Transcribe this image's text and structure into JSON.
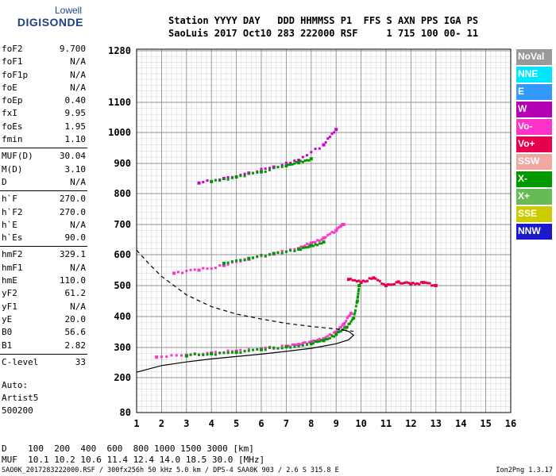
{
  "logo": {
    "line1": "Lowell",
    "line2": "DIGISONDE"
  },
  "header": {
    "line1": "Station YYYY DAY   DDD HHMMSS P1  FFS S AXN PPS IGA PS",
    "line2": "SaoLuis 2017 Oct10 283 222000 RSF     1 715 100 00- 11"
  },
  "params": [
    [
      [
        "foF2",
        "9.700"
      ],
      [
        "foF1",
        "N/A"
      ],
      [
        "foF1p",
        "N/A"
      ],
      [
        "foE",
        "N/A"
      ],
      [
        "foEp",
        "0.40"
      ],
      [
        "fxI",
        "9.95"
      ],
      [
        "foEs",
        "1.95"
      ],
      [
        "fmin",
        "1.10"
      ]
    ],
    [
      [
        "MUF(D)",
        "30.04"
      ],
      [
        "M(D)",
        "3.10"
      ],
      [
        "D",
        "N/A"
      ]
    ],
    [
      [
        "h`F",
        "270.0"
      ],
      [
        "h`F2",
        "270.0"
      ],
      [
        "h`E",
        "N/A"
      ],
      [
        "h`Es",
        "90.0"
      ]
    ],
    [
      [
        "hmF2",
        "329.1"
      ],
      [
        "hmF1",
        "N/A"
      ],
      [
        "hmE",
        "110.0"
      ],
      [
        "yF2",
        "61.2"
      ],
      [
        "yF1",
        "N/A"
      ],
      [
        "yE",
        "20.0"
      ],
      [
        "B0",
        "56.6"
      ],
      [
        "B1",
        "2.82"
      ]
    ],
    [
      [
        "C-level",
        "33"
      ]
    ]
  ],
  "auto": {
    "line1": "Auto:",
    "line2": "Artist5",
    "line3": "500200"
  },
  "legend": [
    {
      "label": "NoVal",
      "color": "#999999"
    },
    {
      "label": "NNE",
      "color": "#00e6ff"
    },
    {
      "label": "E",
      "color": "#3399ff"
    },
    {
      "label": "W",
      "color": "#b300b3"
    },
    {
      "label": "Vo-",
      "color": "#ff33cc"
    },
    {
      "label": "Vo+",
      "color": "#e6004d"
    },
    {
      "label": "SSW",
      "color": "#f0a8a0"
    },
    {
      "label": "X-",
      "color": "#009900"
    },
    {
      "label": "X+",
      "color": "#66bb55"
    },
    {
      "label": "SSE",
      "color": "#cccc00"
    },
    {
      "label": "NNW",
      "color": "#1a1acc"
    }
  ],
  "conversion": {
    "line1": "D    100  200  400  600  800 1000 1500 3000 [km]",
    "line2": "MUF  10.1 10.2 10.6 11.4 12.4 14.0 18.5 30.0 [MHz]"
  },
  "footer": "SAO0K_2017283222000.RSF / 300fx256h 50 kHz 5.0 km / DPS-4 SAA0K 903 / 2.6 S 315.8 E",
  "version": "Ion2Png 1.3.17",
  "chart_data": {
    "type": "scatter",
    "xlim": [
      1,
      16
    ],
    "ylim": [
      80,
      1280
    ],
    "xticks": [
      1,
      2,
      3,
      4,
      5,
      6,
      7,
      8,
      9,
      10,
      11,
      12,
      13,
      14,
      15,
      16
    ],
    "yticks": [
      80,
      200,
      300,
      400,
      500,
      600,
      700,
      800,
      900,
      1000,
      1100,
      1280
    ],
    "grid": true,
    "traces": [
      {
        "name": "trace_o1",
        "color": "#ff33cc",
        "f": [
          1.8,
          3,
          4,
          5,
          6,
          7,
          7.5,
          8,
          8.5,
          9,
          9.3,
          9.6
        ],
        "h": [
          268,
          274,
          282,
          288,
          295,
          304,
          310,
          318,
          328,
          350,
          375,
          410
        ]
      },
      {
        "name": "trace_x1",
        "color": "#009900",
        "f": [
          3,
          4,
          5,
          6,
          7,
          8,
          8.5,
          9,
          9.4,
          9.7,
          9.85,
          9.92
        ],
        "h": [
          272,
          279,
          284,
          293,
          302,
          312,
          322,
          342,
          365,
          395,
          450,
          500
        ]
      },
      {
        "name": "trace_o2",
        "color": "#ff33cc",
        "f": [
          2.5,
          3.5,
          4.5,
          5.5,
          6.5,
          7.5,
          8,
          8.5,
          9,
          9.3
        ],
        "h": [
          540,
          550,
          565,
          585,
          602,
          620,
          638,
          655,
          680,
          700
        ]
      },
      {
        "name": "trace_x2",
        "color": "#009900",
        "f": [
          4.5,
          5.5,
          6.5,
          7.5,
          8,
          8.5
        ],
        "h": [
          572,
          588,
          604,
          618,
          630,
          642
        ]
      },
      {
        "name": "trace_o3",
        "color": "#cc00cc",
        "f": [
          3.5,
          4.5,
          5.5,
          6.5,
          7.5,
          8.5,
          9
        ],
        "h": [
          835,
          850,
          868,
          888,
          910,
          960,
          1010
        ]
      },
      {
        "name": "trace_x3",
        "color": "#009900",
        "f": [
          4,
          5,
          6,
          7,
          7.5,
          8
        ],
        "h": [
          840,
          855,
          872,
          892,
          902,
          915
        ]
      },
      {
        "name": "cluster_11mhz",
        "color": "#e6004d",
        "f": [
          9.5,
          10,
          10.5,
          11,
          11.5,
          12,
          12.5,
          13
        ],
        "h": [
          520,
          510,
          525,
          500,
          512,
          505,
          510,
          500
        ]
      }
    ],
    "profile_solid": {
      "f": [
        1,
        2,
        3,
        4,
        5,
        6,
        7,
        8,
        9,
        9.5,
        9.7,
        9.5,
        9.2
      ],
      "h": [
        218,
        240,
        252,
        262,
        270,
        278,
        287,
        297,
        312,
        325,
        340,
        352,
        358
      ]
    },
    "profile_dashed": {
      "f": [
        1,
        1.5,
        2,
        3,
        4,
        5,
        6,
        7,
        8,
        9,
        9.7
      ],
      "h": [
        615,
        570,
        530,
        470,
        432,
        408,
        392,
        378,
        368,
        360,
        352
      ]
    }
  }
}
